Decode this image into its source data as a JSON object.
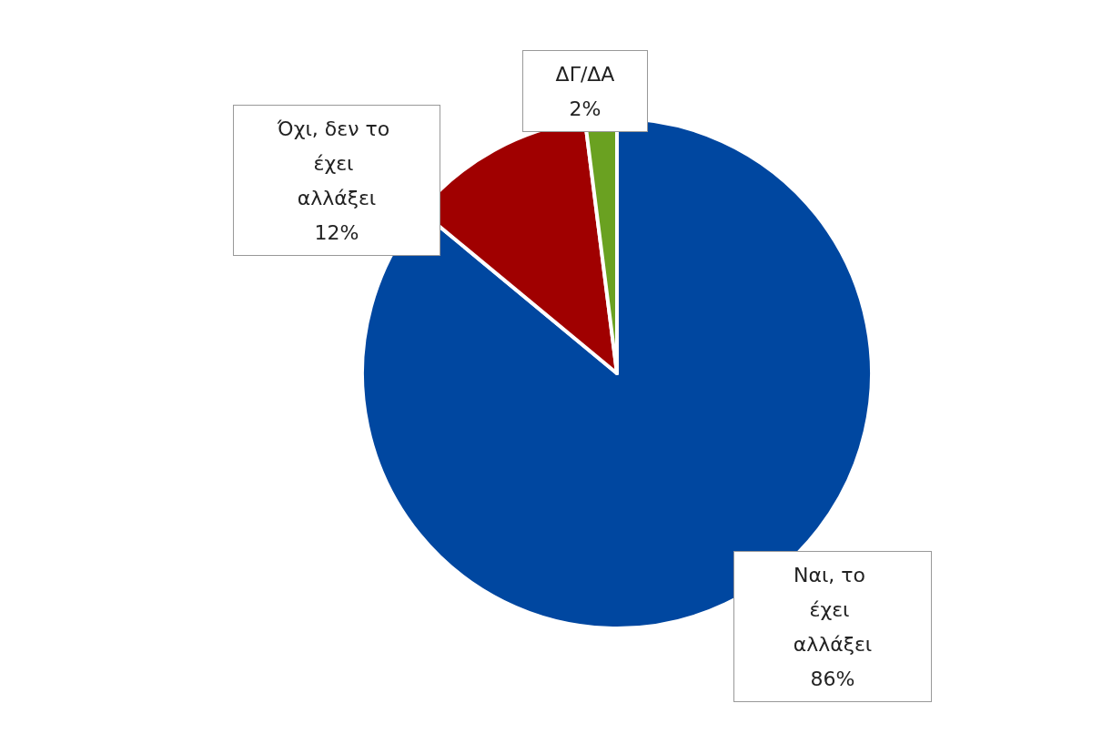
{
  "chart_data": {
    "type": "pie",
    "categories": [
      "Ναι, το έχει αλλάξει",
      "Όχι, δεν το έχει αλλάξει",
      "ΔΓ/ΔΑ"
    ],
    "values": [
      86,
      12,
      2
    ],
    "colors": [
      "#0047a0",
      "#a00000",
      "#6aa121"
    ],
    "value_labels": [
      "86%",
      "12%",
      "2%"
    ]
  }
}
